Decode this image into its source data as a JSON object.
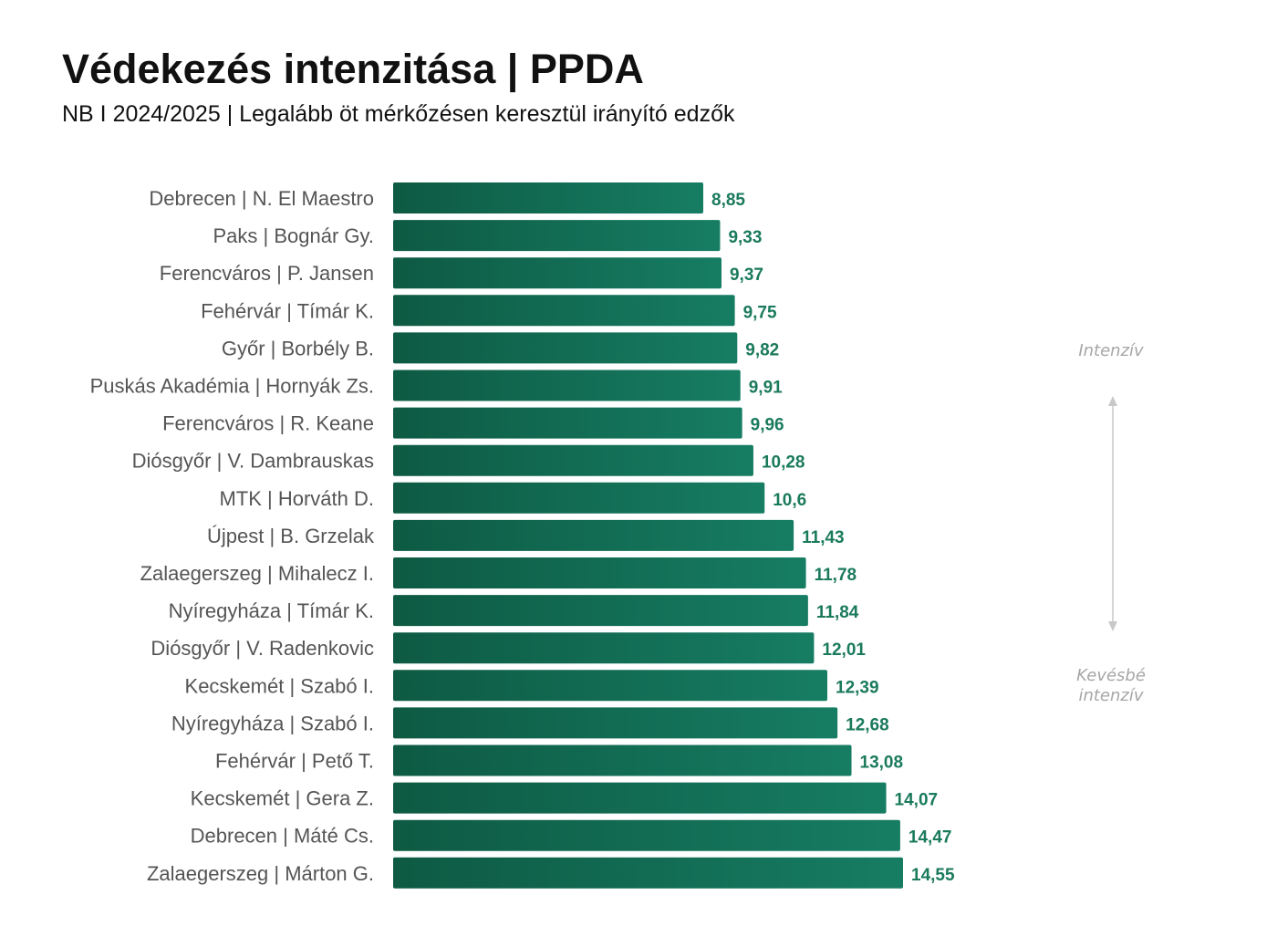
{
  "title": "Védekezés intenzitása | PPDA",
  "subtitle": "NB I 2024/2025 | Legalább öt mérkőzésen keresztül irányító edzők",
  "scale_labels": {
    "top": "Intenzív",
    "bottom_line1": "Kevésbé",
    "bottom_line2": "intenzív"
  },
  "colors": {
    "bar_start": "#0e5a43",
    "bar_end": "#167d63",
    "value_text": "#1a7a5c",
    "category_text": "#555555",
    "arrow": "#c8c8c8"
  },
  "chart_data": {
    "type": "bar",
    "orientation": "horizontal",
    "categories": [
      "Debrecen | N. El Maestro",
      "Paks | Bognár Gy.",
      "Ferencváros | P. Jansen",
      "Fehérvár | Tímár K.",
      "Győr | Borbély B.",
      "Puskás Akadémia | Hornyák Zs.",
      "Ferencváros | R. Keane",
      "Diósgyőr | V. Dambrauskas",
      "MTK | Horváth D.",
      "Újpest | B. Grzelak",
      "Zalaegerszeg | Mihalecz I.",
      "Nyíregyháza | Tímár K.",
      "Diósgyőr | V. Radenkovic",
      "Kecskemét | Szabó I.",
      "Nyíregyháza | Szabó I.",
      "Fehérvár | Pető T.",
      "Kecskemét | Gera Z.",
      "Debrecen | Máté Cs.",
      "Zalaegerszeg | Márton G."
    ],
    "values": [
      8.85,
      9.33,
      9.37,
      9.75,
      9.82,
      9.91,
      9.96,
      10.28,
      10.6,
      11.43,
      11.78,
      11.84,
      12.01,
      12.39,
      12.68,
      13.08,
      14.07,
      14.47,
      14.55
    ],
    "value_labels": [
      "8,85",
      "9,33",
      "9,37",
      "9,75",
      "9,82",
      "9,91",
      "9,96",
      "10,28",
      "10,6",
      "11,43",
      "11,78",
      "11,84",
      "12,01",
      "12,39",
      "12,68",
      "13,08",
      "14,07",
      "14,47",
      "14,55"
    ],
    "xlim": [
      0,
      14.55
    ],
    "grid": false,
    "legend": "none"
  }
}
